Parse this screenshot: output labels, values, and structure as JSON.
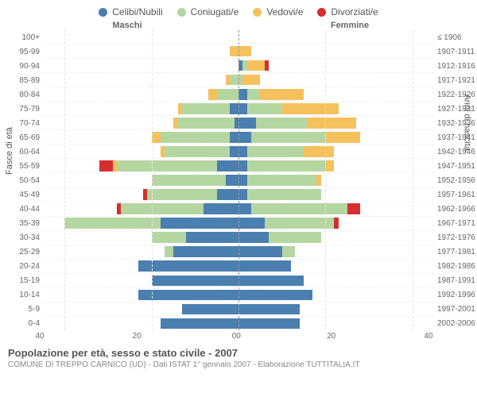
{
  "legend": {
    "celibi": "Celibi/Nubili",
    "coniugati": "Coniugati/e",
    "vedovi": "Vedovi/e",
    "divorziati": "Divorziati/e"
  },
  "colors": {
    "celibi": "#4a7fb0",
    "coniugati": "#b5d6a1",
    "vedovi": "#f5c15d",
    "divorziati": "#d62f2f",
    "grid": "#e5e5e5",
    "centerline": "#999999"
  },
  "headers": {
    "male": "Maschi",
    "female": "Femmine"
  },
  "axis_labels": {
    "left": "Fasce di età",
    "right": "Anni di nascita"
  },
  "xaxis": {
    "max": 45,
    "ticks_left": [
      "40",
      "20",
      "0"
    ],
    "ticks_right": [
      "0",
      "20",
      "40"
    ]
  },
  "age_groups": [
    "100+",
    "95-99",
    "90-94",
    "85-89",
    "80-84",
    "75-79",
    "70-74",
    "65-69",
    "60-64",
    "55-59",
    "50-54",
    "45-49",
    "40-44",
    "35-39",
    "30-34",
    "25-29",
    "20-24",
    "15-19",
    "10-14",
    "5-9",
    "0-4"
  ],
  "birth_years": [
    "≤ 1906",
    "1907-1911",
    "1912-1916",
    "1917-1921",
    "1922-1926",
    "1927-1931",
    "1932-1936",
    "1937-1941",
    "1942-1946",
    "1947-1951",
    "1952-1956",
    "1957-1961",
    "1962-1966",
    "1967-1971",
    "1972-1976",
    "1977-1981",
    "1982-1986",
    "1987-1991",
    "1992-1996",
    "1997-2001",
    "2002-2006"
  ],
  "male": [
    {
      "cel": 0,
      "con": 0,
      "ved": 0,
      "div": 0
    },
    {
      "cel": 0,
      "con": 0,
      "ved": 2,
      "div": 0
    },
    {
      "cel": 0,
      "con": 0,
      "ved": 0,
      "div": 0
    },
    {
      "cel": 0,
      "con": 2,
      "ved": 1,
      "div": 0
    },
    {
      "cel": 0,
      "con": 5,
      "ved": 2,
      "div": 0
    },
    {
      "cel": 2,
      "con": 11,
      "ved": 1,
      "div": 0
    },
    {
      "cel": 1,
      "con": 13,
      "ved": 1,
      "div": 0
    },
    {
      "cel": 2,
      "con": 16,
      "ved": 2,
      "div": 0
    },
    {
      "cel": 2,
      "con": 15,
      "ved": 1,
      "div": 0
    },
    {
      "cel": 5,
      "con": 23,
      "ved": 1,
      "div": 3
    },
    {
      "cel": 3,
      "con": 17,
      "ved": 0,
      "div": 0
    },
    {
      "cel": 5,
      "con": 16,
      "ved": 0,
      "div": 1
    },
    {
      "cel": 8,
      "con": 19,
      "ved": 0,
      "div": 1
    },
    {
      "cel": 18,
      "con": 22,
      "ved": 0,
      "div": 0
    },
    {
      "cel": 12,
      "con": 8,
      "ved": 0,
      "div": 0
    },
    {
      "cel": 15,
      "con": 2,
      "ved": 0,
      "div": 0
    },
    {
      "cel": 23,
      "con": 0,
      "ved": 0,
      "div": 0
    },
    {
      "cel": 20,
      "con": 0,
      "ved": 0,
      "div": 0
    },
    {
      "cel": 23,
      "con": 0,
      "ved": 0,
      "div": 0
    },
    {
      "cel": 13,
      "con": 0,
      "ved": 0,
      "div": 0
    },
    {
      "cel": 18,
      "con": 0,
      "ved": 0,
      "div": 0
    }
  ],
  "female": [
    {
      "cel": 0,
      "con": 0,
      "ved": 0,
      "div": 0
    },
    {
      "cel": 0,
      "con": 0,
      "ved": 3,
      "div": 0
    },
    {
      "cel": 1,
      "con": 1,
      "ved": 4,
      "div": 1
    },
    {
      "cel": 0,
      "con": 1,
      "ved": 4,
      "div": 0
    },
    {
      "cel": 2,
      "con": 3,
      "ved": 10,
      "div": 0
    },
    {
      "cel": 2,
      "con": 8,
      "ved": 13,
      "div": 0
    },
    {
      "cel": 4,
      "con": 12,
      "ved": 11,
      "div": 0
    },
    {
      "cel": 3,
      "con": 17,
      "ved": 8,
      "div": 0
    },
    {
      "cel": 2,
      "con": 13,
      "ved": 7,
      "div": 0
    },
    {
      "cel": 2,
      "con": 18,
      "ved": 2,
      "div": 0
    },
    {
      "cel": 2,
      "con": 16,
      "ved": 1,
      "div": 0
    },
    {
      "cel": 2,
      "con": 17,
      "ved": 0,
      "div": 0
    },
    {
      "cel": 3,
      "con": 22,
      "ved": 0,
      "div": 3
    },
    {
      "cel": 6,
      "con": 16,
      "ved": 0,
      "div": 1
    },
    {
      "cel": 7,
      "con": 12,
      "ved": 0,
      "div": 0
    },
    {
      "cel": 10,
      "con": 3,
      "ved": 0,
      "div": 0
    },
    {
      "cel": 12,
      "con": 0,
      "ved": 0,
      "div": 0
    },
    {
      "cel": 15,
      "con": 0,
      "ved": 0,
      "div": 0
    },
    {
      "cel": 17,
      "con": 0,
      "ved": 0,
      "div": 0
    },
    {
      "cel": 14,
      "con": 0,
      "ved": 0,
      "div": 0
    },
    {
      "cel": 14,
      "con": 0,
      "ved": 0,
      "div": 0
    }
  ],
  "footer": {
    "title": "Popolazione per età, sesso e stato civile - 2007",
    "sub": "COMUNE DI TREPPO CARNICO (UD) - Dati ISTAT 1° gennaio 2007 - Elaborazione TUTTITALIA.IT"
  }
}
